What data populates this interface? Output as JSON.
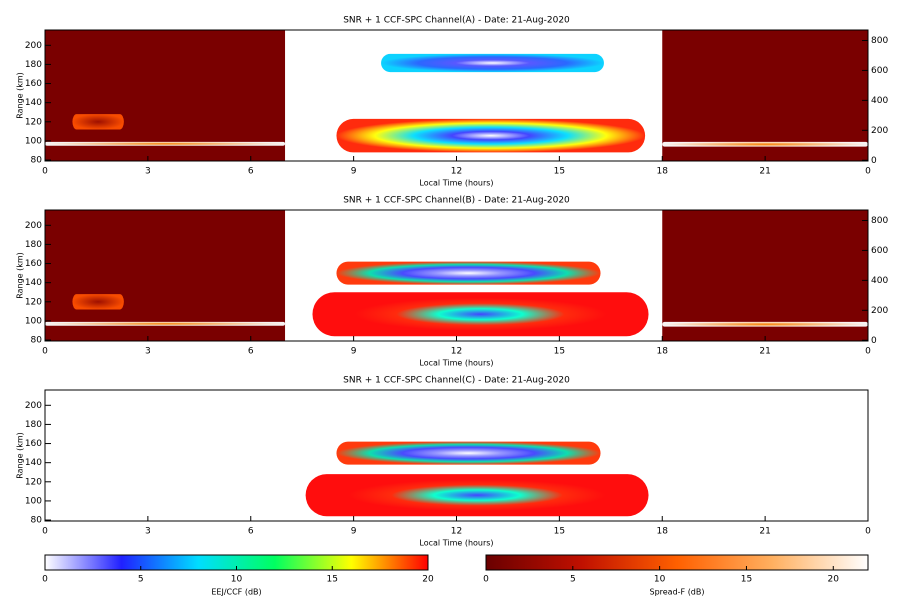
{
  "chart_data": [
    {
      "type": "heatmap",
      "title": "SNR + 1 CCF-SPC Channel(A) - Date: 21-Aug-2020",
      "x_label": "Local Time (hours)",
      "y_label": "Range (km)",
      "xlim": [
        0,
        24
      ],
      "xticks": [
        0,
        3,
        6,
        9,
        12,
        15,
        18,
        21,
        {
          "value": 24,
          "label": "0"
        }
      ],
      "ylim": [
        79,
        216
      ],
      "yticks": [
        80,
        100,
        120,
        140,
        160,
        180,
        200
      ],
      "y2lim": [
        -5,
        870
      ],
      "y2ticks": [
        0,
        200,
        400,
        600,
        800
      ],
      "layers": [
        {
          "x": [
            0,
            7
          ],
          "y": [
            79,
            216
          ],
          "colors": [
            "#7a0000",
            "#7a0000"
          ]
        },
        {
          "x": [
            18,
            24
          ],
          "y": [
            79,
            216
          ],
          "colors": [
            "#7a0000",
            "#7a0000"
          ]
        },
        {
          "x": [
            0,
            7
          ],
          "y": [
            95,
            99
          ],
          "colors": [
            "#ff8800",
            "#ffffff"
          ]
        },
        {
          "x": [
            18,
            24
          ],
          "y": [
            94,
            99
          ],
          "colors": [
            "#ff8800",
            "#ffffff"
          ]
        },
        {
          "x": [
            0.8,
            2.3
          ],
          "y": [
            112,
            128
          ],
          "colors": [
            "#a01000",
            "#ff5000"
          ]
        },
        {
          "x": [
            8.5,
            17.5
          ],
          "y": [
            88,
            123
          ],
          "colors": [
            "#ffffff",
            "#3a3aff",
            "#00ddff",
            "#ffff00",
            "#ff2000"
          ]
        },
        {
          "x": [
            9.8,
            16.3
          ],
          "y": [
            172,
            191
          ],
          "colors": [
            "#ffffff",
            "#5050ff",
            "#2060ff",
            "#00d0ff"
          ]
        }
      ]
    },
    {
      "type": "heatmap",
      "title": "SNR + 1 CCF-SPC Channel(B) - Date: 21-Aug-2020",
      "x_label": "Local Time (hours)",
      "y_label": "Range (km)",
      "xlim": [
        0,
        24
      ],
      "xticks": [
        0,
        3,
        6,
        9,
        12,
        15,
        18,
        21,
        {
          "value": 24,
          "label": "0"
        }
      ],
      "ylim": [
        79,
        216
      ],
      "yticks": [
        80,
        100,
        120,
        140,
        160,
        180,
        200
      ],
      "y2lim": [
        -5,
        870
      ],
      "y2ticks": [
        0,
        200,
        400,
        600,
        800
      ],
      "layers": [
        {
          "x": [
            0,
            7
          ],
          "y": [
            79,
            216
          ],
          "colors": [
            "#7a0000",
            "#7a0000"
          ]
        },
        {
          "x": [
            18,
            24
          ],
          "y": [
            79,
            216
          ],
          "colors": [
            "#7a0000",
            "#7a0000"
          ]
        },
        {
          "x": [
            0,
            7
          ],
          "y": [
            95,
            99
          ],
          "colors": [
            "#ff8800",
            "#ffffff"
          ]
        },
        {
          "x": [
            18,
            24
          ],
          "y": [
            94,
            99
          ],
          "colors": [
            "#ff8800",
            "#ffffff"
          ]
        },
        {
          "x": [
            0.8,
            2.3
          ],
          "y": [
            112,
            128
          ],
          "colors": [
            "#a01000",
            "#ff5000"
          ]
        },
        {
          "x": [
            7.8,
            17.6
          ],
          "y": [
            84,
            130
          ],
          "colors": [
            "#3a3aff",
            "#00ffcc",
            "#ff2000",
            "#ff0000",
            "#ff0000"
          ]
        },
        {
          "x": [
            8.5,
            16.2
          ],
          "y": [
            138,
            162
          ],
          "colors": [
            "#ffffff",
            "#9090ff",
            "#4040ff",
            "#00ddaa",
            "#ff3000"
          ]
        }
      ]
    },
    {
      "type": "heatmap",
      "title": "SNR + 1 CCF-SPC Channel(C) - Date: 21-Aug-2020",
      "x_label": "Local Time (hours)",
      "y_label": "Range (km)",
      "xlim": [
        0,
        24
      ],
      "xticks": [
        0,
        3,
        6,
        9,
        12,
        15,
        18,
        21,
        {
          "value": 24,
          "label": "0"
        }
      ],
      "ylim": [
        79,
        216
      ],
      "yticks": [
        80,
        100,
        120,
        140,
        160,
        180,
        200
      ],
      "layers": [
        {
          "x": [
            7.6,
            17.6
          ],
          "y": [
            84,
            128
          ],
          "colors": [
            "#3a3aff",
            "#00ffcc",
            "#ff2000",
            "#ff0000",
            "#ff0000"
          ]
        },
        {
          "x": [
            8.5,
            16.2
          ],
          "y": [
            138,
            162
          ],
          "colors": [
            "#ffffff",
            "#9090ff",
            "#4040ff",
            "#00ddaa",
            "#ff3000"
          ]
        }
      ]
    },
    {
      "type": "colorbar",
      "x_label": "EEJ/CCF (dB)",
      "xlim": [
        0,
        20
      ],
      "xticks": [
        0,
        5,
        10,
        15,
        20
      ],
      "colors": [
        "#ffffff",
        "#2020ff",
        "#00ddff",
        "#00ff60",
        "#ffff00",
        "#ff0000"
      ]
    },
    {
      "type": "colorbar",
      "x_label": "Spread-F (dB)",
      "xlim": [
        0,
        22
      ],
      "xticks": [
        0,
        5,
        10,
        15,
        20
      ],
      "colors": [
        "#6a0000",
        "#c01000",
        "#ff6000",
        "#ffb060",
        "#ffffff"
      ]
    }
  ]
}
